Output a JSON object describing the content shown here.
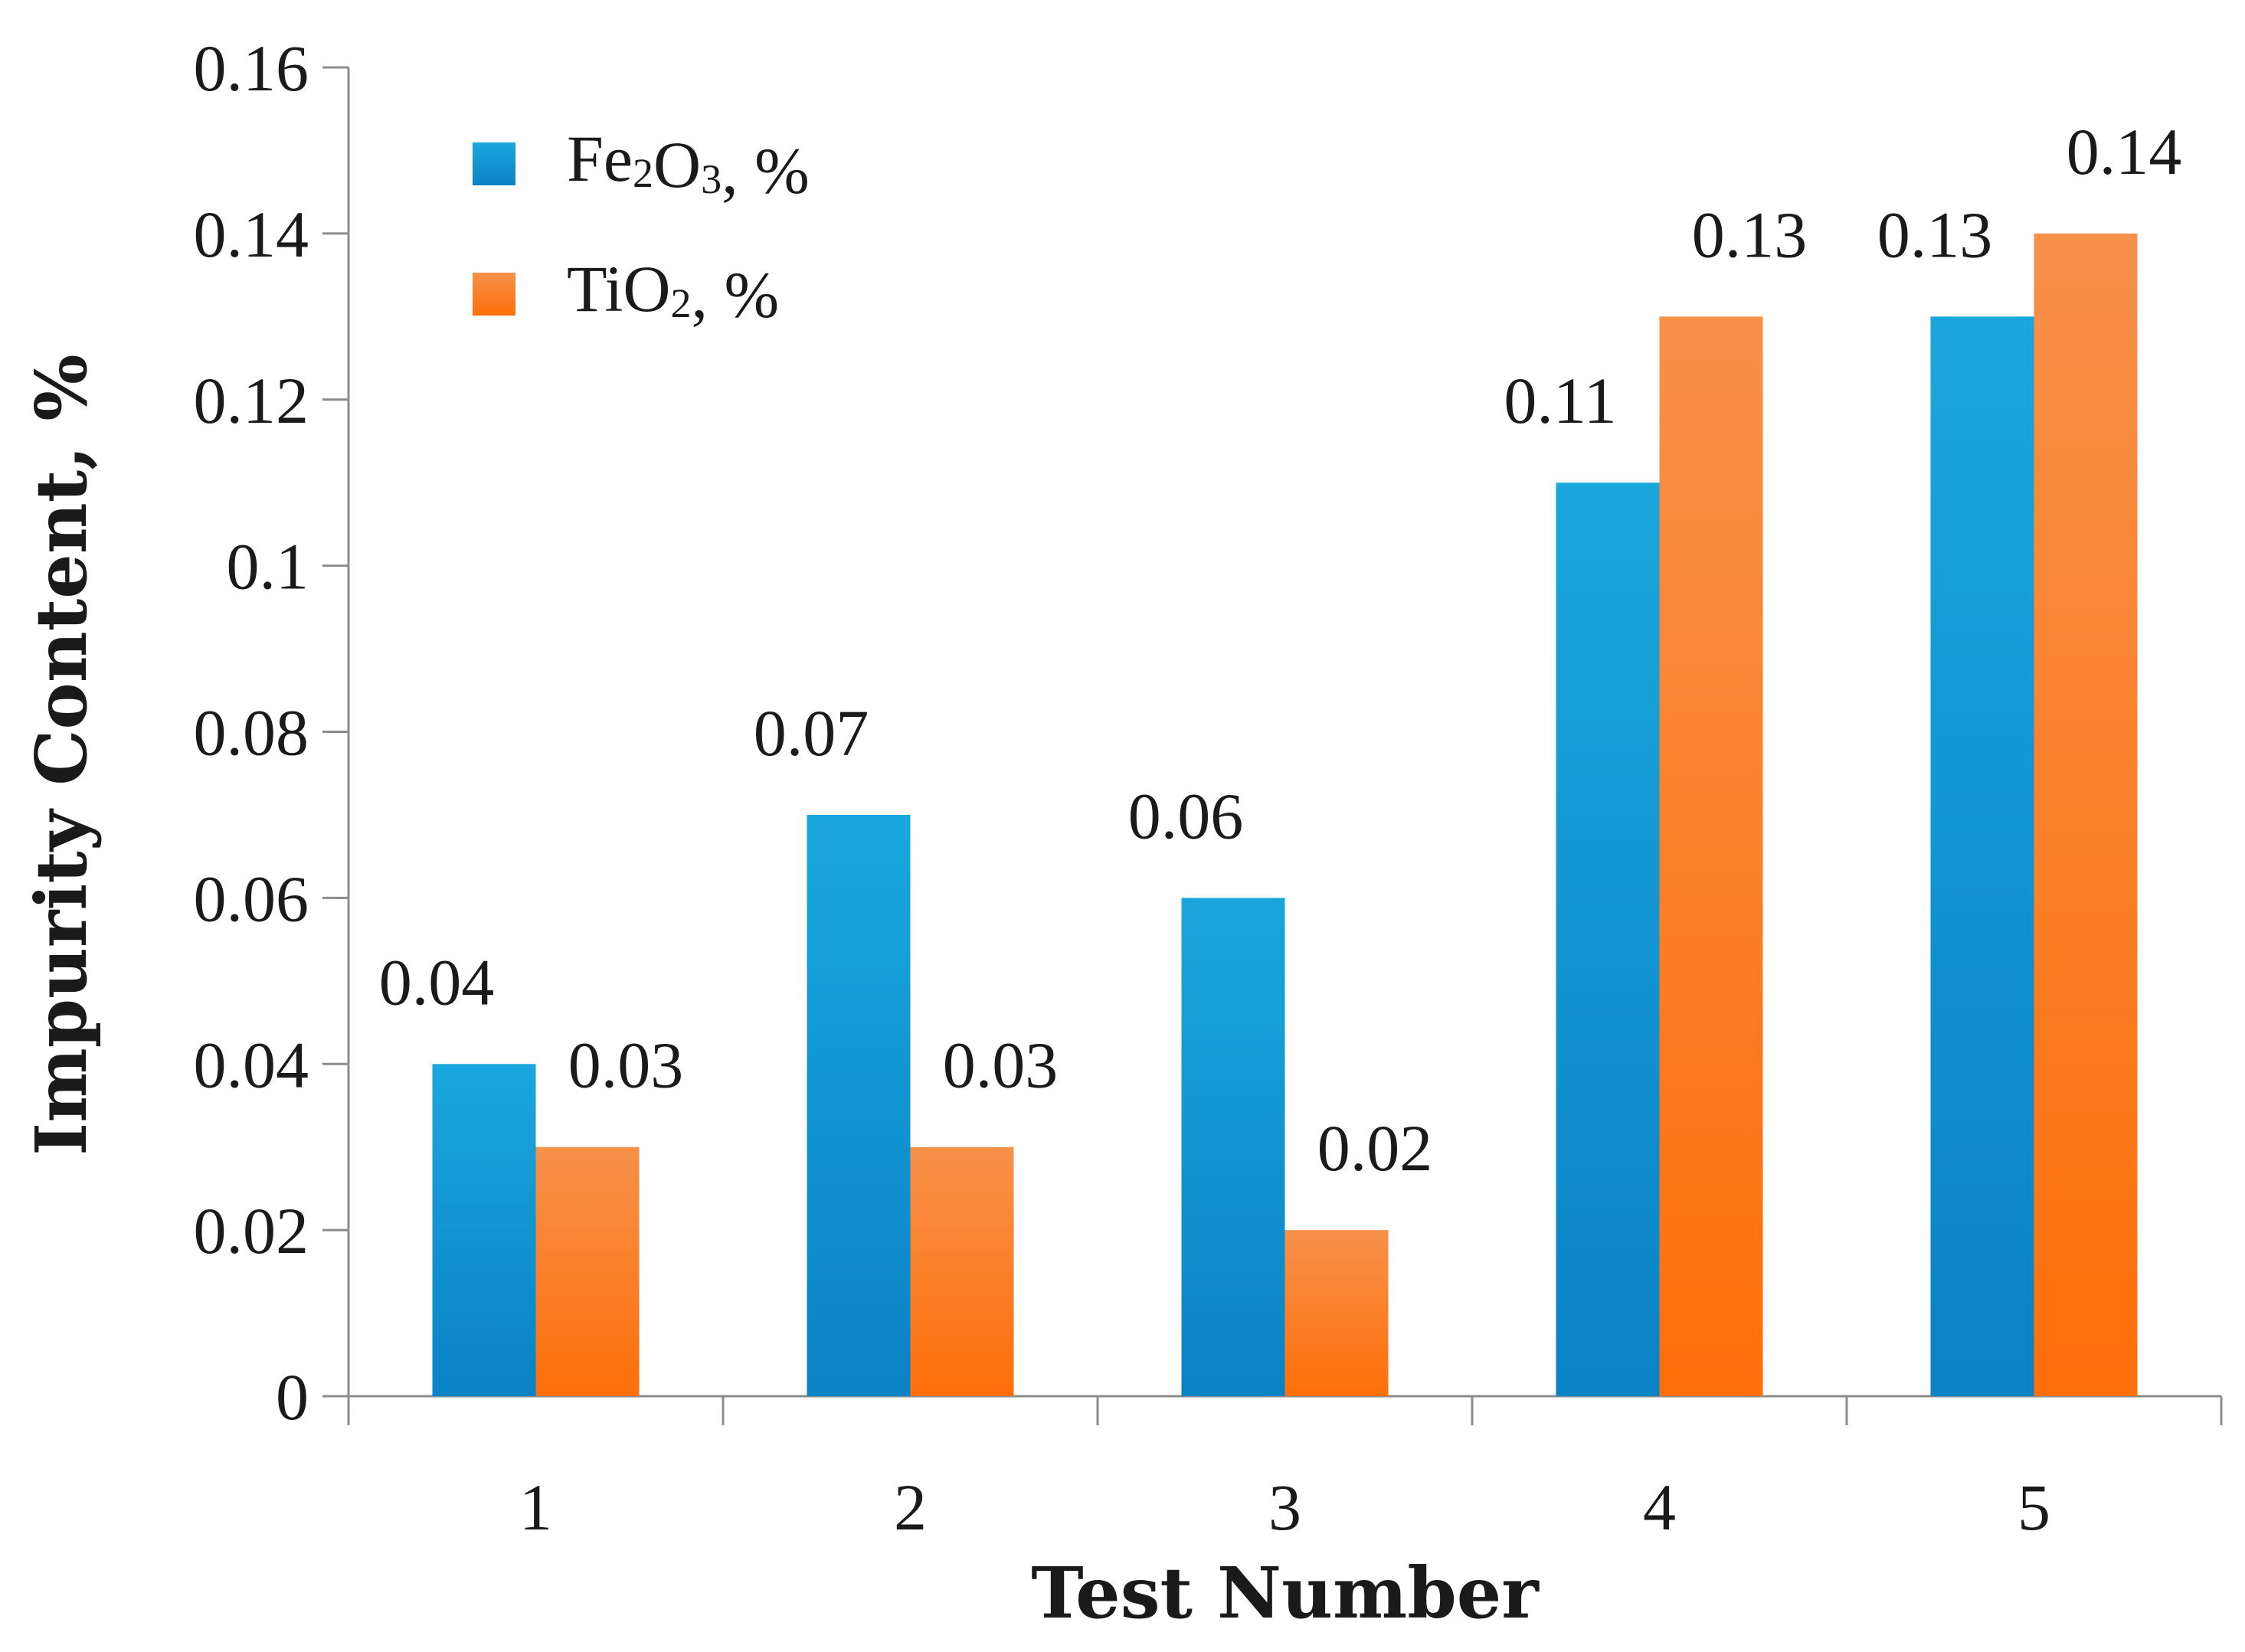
{
  "chart_data": {
    "type": "bar",
    "title": "",
    "xlabel": "Test Number",
    "ylabel": "Impurity Content, %",
    "categories": [
      "1",
      "2",
      "3",
      "4",
      "5"
    ],
    "ylim": [
      0,
      0.16
    ],
    "yticks": [
      "0",
      "0.02",
      "0.04",
      "0.06",
      "0.08",
      "0.1",
      "0.12",
      "0.14",
      "0.16"
    ],
    "ytick_values": [
      0,
      0.02,
      0.04,
      0.06,
      0.08,
      0.1,
      0.12,
      0.14,
      0.16
    ],
    "grid": false,
    "legend_position": "top-left",
    "series": [
      {
        "name": "Fe2O3, %",
        "legend_parts": [
          [
            "Fe",
            "n"
          ],
          [
            "2",
            "s"
          ],
          [
            "O",
            "n"
          ],
          [
            "3",
            "s"
          ],
          [
            ", %",
            "n"
          ]
        ],
        "values": [
          0.04,
          0.07,
          0.06,
          0.11,
          0.13
        ],
        "labels": [
          "0.04",
          "0.07",
          "0.06",
          "0.11",
          "0.13"
        ],
        "color_top": "#1aa7dc",
        "color_bottom": "#0a82c6"
      },
      {
        "name": "TiO2, %",
        "legend_parts": [
          [
            "TiO",
            "n"
          ],
          [
            "2",
            "s"
          ],
          [
            ", %",
            "n"
          ]
        ],
        "values": [
          0.03,
          0.03,
          0.02,
          0.13,
          0.14
        ],
        "labels": [
          "0.03",
          "0.03",
          "0.02",
          "0.13",
          "0.14"
        ],
        "color_top": "#f7914a",
        "color_bottom": "#ff6f0a"
      }
    ]
  }
}
